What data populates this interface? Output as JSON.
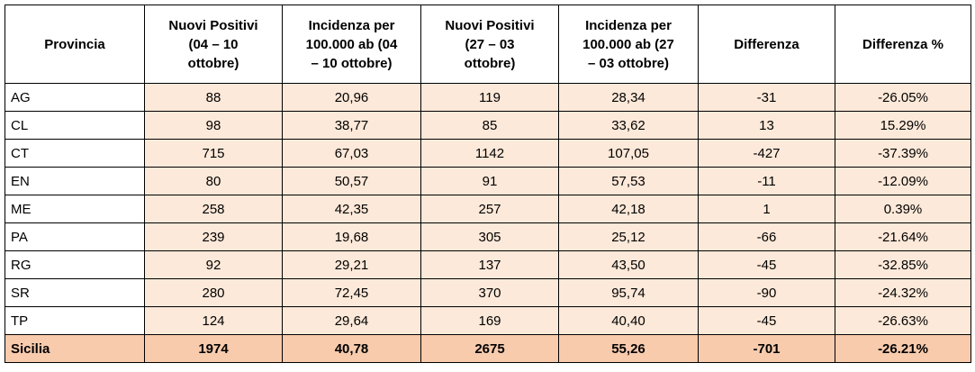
{
  "table": {
    "header": [
      [
        "Provincia"
      ],
      [
        "Nuovi Positivi",
        "(04 – 10",
        "ottobre)"
      ],
      [
        "Incidenza per",
        "100.000 ab (04",
        "– 10 ottobre)"
      ],
      [
        "Nuovi Positivi",
        "(27 – 03",
        "ottobre)"
      ],
      [
        "Incidenza per",
        "100.000 ab (27",
        "– 03 ottobre)"
      ],
      [
        "Differenza"
      ],
      [
        "Differenza %"
      ]
    ],
    "rows": [
      [
        "AG",
        "88",
        "20,96",
        "119",
        "28,34",
        "-31",
        "-26.05%"
      ],
      [
        "CL",
        "98",
        "38,77",
        "85",
        "33,62",
        "13",
        "15.29%"
      ],
      [
        "CT",
        "715",
        "67,03",
        "1142",
        "107,05",
        "-427",
        "-37.39%"
      ],
      [
        "EN",
        "80",
        "50,57",
        "91",
        "57,53",
        "-11",
        "-12.09%"
      ],
      [
        "ME",
        "258",
        "42,35",
        "257",
        "42,18",
        "1",
        "0.39%"
      ],
      [
        "PA",
        "239",
        "19,68",
        "305",
        "25,12",
        "-66",
        "-21.64%"
      ],
      [
        "RG",
        "92",
        "29,21",
        "137",
        "43,50",
        "-45",
        "-32.85%"
      ],
      [
        "SR",
        "280",
        "72,45",
        "370",
        "95,74",
        "-90",
        "-24.32%"
      ],
      [
        "TP",
        "124",
        "29,64",
        "169",
        "40,40",
        "-45",
        "-26.63%"
      ]
    ],
    "total": [
      "Sicilia",
      "1974",
      "40,78",
      "2675",
      "55,26",
      "-701",
      "-26.21%"
    ]
  }
}
